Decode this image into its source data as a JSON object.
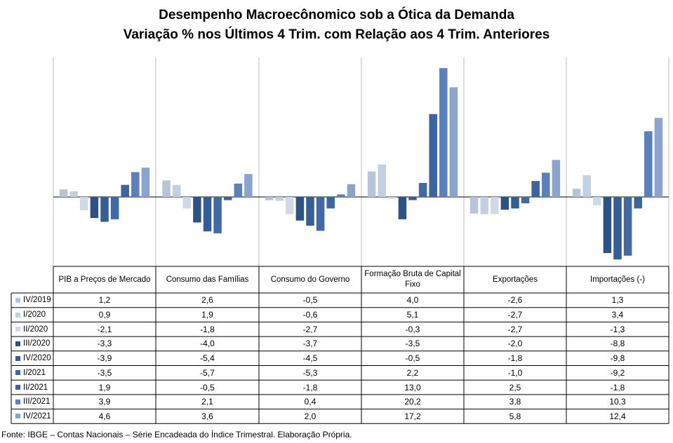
{
  "chart_data": {
    "type": "bar",
    "title": "Desempenho Macroecônomico sob a Ótica da Demanda",
    "subtitle": "Variação % nos Últimos 4 Trim. com Relação aos  4 Trim. Anteriores",
    "categories": [
      "PIB a Preços de Mercado",
      "Consumo das Famílias",
      "Consumo do Governo",
      "Formação Bruta de Capital Fixo",
      "Exportações",
      "Importações (-)"
    ],
    "series": [
      {
        "name": "IV/2019",
        "color": "#b7c4dc",
        "values": [
          1.2,
          2.6,
          -0.5,
          4.0,
          -2.6,
          1.3
        ]
      },
      {
        "name": "I/2020",
        "color": "#c3cfe3",
        "values": [
          0.9,
          1.9,
          -0.6,
          5.1,
          -2.7,
          3.4
        ]
      },
      {
        "name": "II/2020",
        "color": "#cfd9ea",
        "values": [
          -2.1,
          -1.8,
          -2.7,
          -0.3,
          -2.7,
          -1.3
        ]
      },
      {
        "name": "III/2020",
        "color": "#2d5286",
        "values": [
          -3.3,
          -4.0,
          -3.7,
          -3.5,
          -2.0,
          -8.8
        ]
      },
      {
        "name": "IV/2020",
        "color": "#355d96",
        "values": [
          -3.9,
          -5.4,
          -4.5,
          -0.5,
          -1.8,
          -9.8
        ]
      },
      {
        "name": "I/2021",
        "color": "#3f6aa7",
        "values": [
          -3.5,
          -5.7,
          -5.3,
          2.2,
          -1.0,
          -9.2
        ]
      },
      {
        "name": "II/2021",
        "color": "#3b64a0",
        "values": [
          1.9,
          -0.5,
          -1.8,
          13.0,
          2.5,
          -1.8
        ]
      },
      {
        "name": "III/2021",
        "color": "#5b80ba",
        "values": [
          3.9,
          2.1,
          0.4,
          20.2,
          3.8,
          10.3
        ]
      },
      {
        "name": "IV/2021",
        "color": "#8aa4cf",
        "values": [
          4.6,
          3.6,
          2.0,
          17.2,
          5.8,
          12.4
        ]
      }
    ],
    "grid": false,
    "legend": "table"
  },
  "table": {
    "rows": [
      {
        "label": "IV/2019",
        "cells": [
          "1,2",
          "2,6",
          "-0,5",
          "4,0",
          "-2,6",
          "1,3"
        ]
      },
      {
        "label": "I/2020",
        "cells": [
          "0,9",
          "1,9",
          "-0,6",
          "5,1",
          "-2,7",
          "3,4"
        ]
      },
      {
        "label": "II/2020",
        "cells": [
          "-2,1",
          "-1,8",
          "-2,7",
          "-0,3",
          "-2,7",
          "-1,3"
        ]
      },
      {
        "label": "III/2020",
        "cells": [
          "-3,3",
          "-4,0",
          "-3,7",
          "-3,5",
          "-2,0",
          "-8,8"
        ]
      },
      {
        "label": "IV/2020",
        "cells": [
          "-3,9",
          "-5,4",
          "-4,5",
          "-0,5",
          "-1,8",
          "-9,8"
        ]
      },
      {
        "label": "I/2021",
        "cells": [
          "-3,5",
          "-5,7",
          "-5,3",
          "2,2",
          "-1,0",
          "-9,2"
        ]
      },
      {
        "label": "II/2021",
        "cells": [
          "1,9",
          "-0,5",
          "-1,8",
          "13,0",
          "2,5",
          "-1,8"
        ]
      },
      {
        "label": "III/2021",
        "cells": [
          "3,9",
          "2,1",
          "0,4",
          "20,2",
          "3,8",
          "10,3"
        ]
      },
      {
        "label": "IV/2021",
        "cells": [
          "4,6",
          "3,6",
          "2,0",
          "17,2",
          "5,8",
          "12,4"
        ]
      }
    ]
  },
  "source": "Fonte: IBGE – Contas Nacionais – Série Encadeada do Índice Trimestral. Elaboração Própria."
}
